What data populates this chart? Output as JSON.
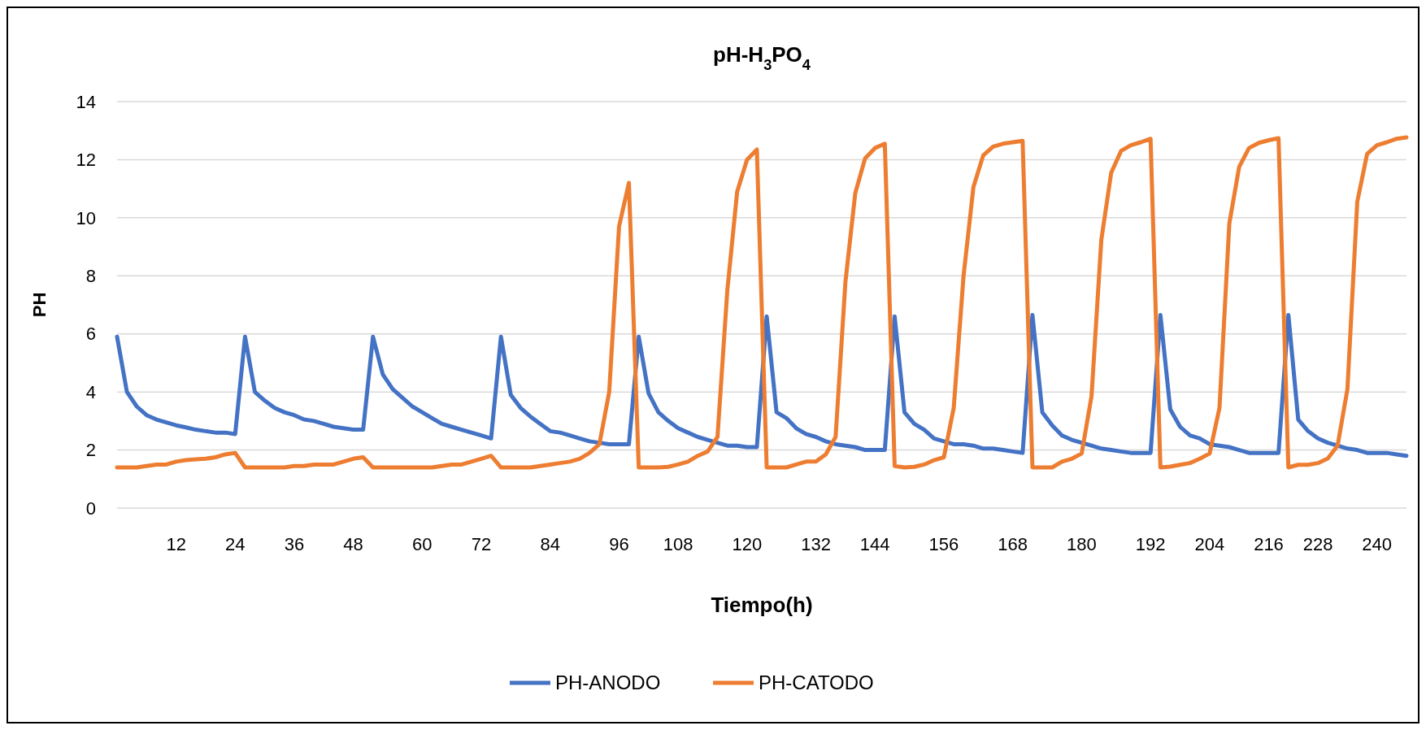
{
  "chart_data": {
    "type": "line",
    "title": "pH-H$_{3}$PO$_{4}$",
    "xlabel": "Tiempo(h)",
    "ylabel": "PH",
    "categories": [
      null,
      null,
      null,
      null,
      null,
      null,
      "12",
      null,
      null,
      null,
      null,
      null,
      "24",
      null,
      null,
      null,
      null,
      null,
      "36",
      null,
      null,
      null,
      null,
      null,
      "48",
      null,
      null,
      null,
      null,
      null,
      null,
      "60",
      null,
      null,
      null,
      null,
      null,
      "72",
      null,
      null,
      null,
      null,
      null,
      null,
      "84",
      null,
      null,
      null,
      null,
      null,
      null,
      "96",
      null,
      null,
      null,
      null,
      null,
      "108",
      null,
      null,
      null,
      null,
      null,
      null,
      "120",
      null,
      null,
      null,
      null,
      null,
      null,
      "132",
      null,
      null,
      null,
      null,
      null,
      "144",
      null,
      null,
      null,
      null,
      null,
      null,
      "156",
      null,
      null,
      null,
      null,
      null,
      null,
      "168",
      null,
      null,
      null,
      null,
      null,
      null,
      "180",
      null,
      null,
      null,
      null,
      null,
      null,
      "192",
      null,
      null,
      null,
      null,
      null,
      "204",
      null,
      null,
      null,
      null,
      null,
      "216",
      null,
      null,
      null,
      null,
      "228",
      null,
      null,
      null,
      null,
      null,
      "240",
      null,
      null,
      null
    ],
    "series": [
      {
        "name": "PH-ANODO",
        "color": "#4472c4",
        "values": [
          5.9,
          4.0,
          3.5,
          3.2,
          3.05,
          2.95,
          2.85,
          2.78,
          2.7,
          2.65,
          2.6,
          2.6,
          2.55,
          5.9,
          4.0,
          3.7,
          3.45,
          3.3,
          3.2,
          3.05,
          3.0,
          2.9,
          2.8,
          2.75,
          2.7,
          2.7,
          5.9,
          4.6,
          4.1,
          3.8,
          3.5,
          3.3,
          3.1,
          2.9,
          2.8,
          2.7,
          2.6,
          2.5,
          2.4,
          5.9,
          3.9,
          3.45,
          3.15,
          2.9,
          2.65,
          2.6,
          2.5,
          2.4,
          2.3,
          2.25,
          2.2,
          2.2,
          2.2,
          5.9,
          3.95,
          3.3,
          3.0,
          2.75,
          2.6,
          2.45,
          2.35,
          2.25,
          2.15,
          2.15,
          2.1,
          2.1,
          6.6,
          3.3,
          3.1,
          2.75,
          2.55,
          2.45,
          2.3,
          2.2,
          2.15,
          2.1,
          2.0,
          2.0,
          2.0,
          6.6,
          3.3,
          2.9,
          2.7,
          2.4,
          2.3,
          2.2,
          2.2,
          2.15,
          2.05,
          2.05,
          2.0,
          1.95,
          1.9,
          6.65,
          3.3,
          2.85,
          2.5,
          2.35,
          2.25,
          2.15,
          2.05,
          2.0,
          1.95,
          1.9,
          1.9,
          1.9,
          6.65,
          3.4,
          2.8,
          2.5,
          2.4,
          2.2,
          2.15,
          2.1,
          2.0,
          1.9,
          1.9,
          1.9,
          1.9,
          6.65,
          3.05,
          2.65,
          2.4,
          2.25,
          2.15,
          2.05,
          2.0,
          1.9,
          1.9,
          1.9,
          1.85,
          1.8
        ]
      },
      {
        "name": "PH-CATODO",
        "color": "#ed7d31",
        "values": [
          1.4,
          1.4,
          1.4,
          1.45,
          1.5,
          1.5,
          1.6,
          1.65,
          1.68,
          1.7,
          1.75,
          1.85,
          1.9,
          1.4,
          1.4,
          1.4,
          1.4,
          1.4,
          1.45,
          1.45,
          1.5,
          1.5,
          1.5,
          1.6,
          1.7,
          1.75,
          1.4,
          1.4,
          1.4,
          1.4,
          1.4,
          1.4,
          1.4,
          1.45,
          1.5,
          1.5,
          1.6,
          1.7,
          1.8,
          1.4,
          1.4,
          1.4,
          1.4,
          1.45,
          1.5,
          1.55,
          1.6,
          1.7,
          1.9,
          2.2,
          4.0,
          9.7,
          11.2,
          1.4,
          1.4,
          1.4,
          1.42,
          1.5,
          1.6,
          1.8,
          1.95,
          2.45,
          7.5,
          10.9,
          12.0,
          12.35,
          1.4,
          1.4,
          1.4,
          1.5,
          1.6,
          1.6,
          1.85,
          2.45,
          7.8,
          10.85,
          12.05,
          12.4,
          12.55,
          1.45,
          1.4,
          1.42,
          1.5,
          1.65,
          1.75,
          3.45,
          8.0,
          11.05,
          12.15,
          12.45,
          12.55,
          12.6,
          12.65,
          1.4,
          1.4,
          1.4,
          1.6,
          1.7,
          1.88,
          3.85,
          9.25,
          11.55,
          12.3,
          12.5,
          12.6,
          12.72,
          1.4,
          1.43,
          1.49,
          1.55,
          1.7,
          1.88,
          3.45,
          9.8,
          11.75,
          12.4,
          12.58,
          12.67,
          12.74,
          1.4,
          1.49,
          1.49,
          1.55,
          1.71,
          2.15,
          4.1,
          10.55,
          12.2,
          12.5,
          12.6,
          12.72,
          12.77
        ]
      }
    ],
    "ylim": [
      0,
      14
    ],
    "yticks": [
      0,
      2,
      4,
      6,
      8,
      10,
      12,
      14
    ],
    "grid": "y",
    "legend": "bottom"
  }
}
